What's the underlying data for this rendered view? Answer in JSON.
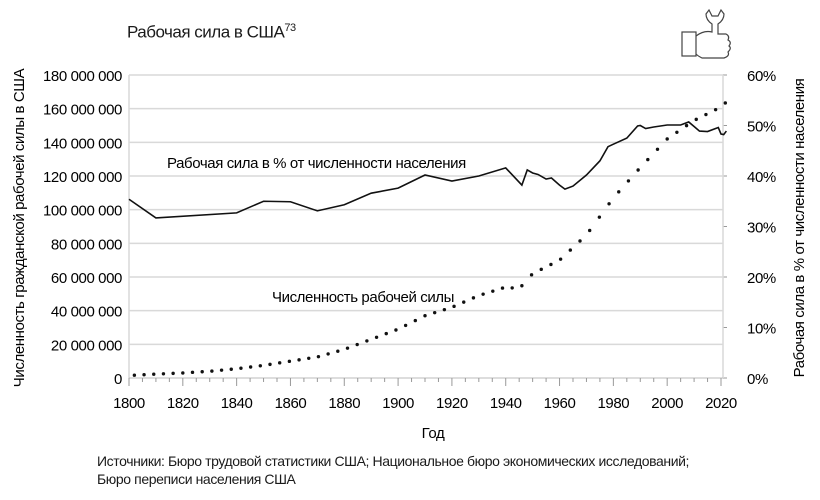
{
  "title": "Рабочая сила в США",
  "title_footnote": "73",
  "icon": "hand-wrench-icon",
  "source_line1": "Источники: Бюро трудовой статистики США; Национальное бюро экономических исследований;",
  "source_line2": "Бюро переписи населения США",
  "chart_data": {
    "type": "line",
    "title": "Рабочая сила в США",
    "xlabel": "Год",
    "ylabel": "Численность гражданской рабочей силы в США",
    "ylabel_right": "Рабочая сила в % от численности населения",
    "xlim": [
      1800,
      2023
    ],
    "ylim": [
      0,
      180000000
    ],
    "ylim_right": [
      0,
      60
    ],
    "grid": true,
    "x_ticks": [
      "1800",
      "1820",
      "1840",
      "1860",
      "1880",
      "1900",
      "1920",
      "1940",
      "1960",
      "1980",
      "2000",
      "2020"
    ],
    "y_ticks": [
      "0",
      "20 000 000",
      "40 000 000",
      "60 000 000",
      "80 000 000",
      "100 000 000",
      "120 000 000",
      "140 000 000",
      "160 000 000",
      "180 000 000"
    ],
    "y_ticks_right": [
      "0%",
      "10%",
      "20%",
      "30%",
      "40%",
      "50%",
      "60%"
    ],
    "series": [
      {
        "name": "Рабочая сила в % от численности населения",
        "axis": "right",
        "style": "solid",
        "x": [
          1800,
          1810,
          1840,
          1850,
          1860,
          1870,
          1880,
          1890,
          1900,
          1910,
          1920,
          1930,
          1940,
          1946,
          1948,
          1950,
          1952,
          1955,
          1957,
          1960,
          1962,
          1965,
          1970,
          1975,
          1978,
          1980,
          1985,
          1989,
          1990,
          1992,
          1995,
          2000,
          2005,
          2008,
          2010,
          2012,
          2015,
          2018,
          2019,
          2020,
          2021,
          2022
        ],
        "values": [
          35.4,
          31.7,
          32.7,
          35.0,
          34.9,
          33.1,
          34.3,
          36.6,
          37.6,
          40.2,
          39.0,
          40.0,
          41.6,
          38.2,
          41.2,
          40.6,
          40.3,
          39.4,
          39.6,
          38.2,
          37.4,
          38.0,
          40.2,
          43.0,
          45.8,
          46.3,
          47.5,
          49.9,
          50.0,
          49.4,
          49.7,
          50.1,
          50.1,
          50.7,
          49.8,
          48.9,
          48.8,
          49.4,
          49.6,
          48.3,
          48.2,
          48.9
        ]
      },
      {
        "name": "Численность рабочей силы",
        "axis": "left",
        "style": "dotted",
        "x": [
          1800,
          1810,
          1820,
          1830,
          1840,
          1850,
          1860,
          1870,
          1880,
          1890,
          1900,
          1910,
          1920,
          1930,
          1940,
          1945,
          1950,
          1960,
          1970,
          1980,
          1990,
          2000,
          2010,
          2020,
          2022
        ],
        "values": [
          1500000,
          2300000,
          3000000,
          4000000,
          5500000,
          7500000,
          10000000,
          12500000,
          17000000,
          23000000,
          29000000,
          37000000,
          42000000,
          49000000,
          54000000,
          53000000,
          62000000,
          70000000,
          85000000,
          107000000,
          125000000,
          142000000,
          153000000,
          161000000,
          164000000
        ]
      }
    ],
    "annotations": [
      "Рабочая сила в % от численности населения",
      "Численность рабочей силы"
    ]
  }
}
